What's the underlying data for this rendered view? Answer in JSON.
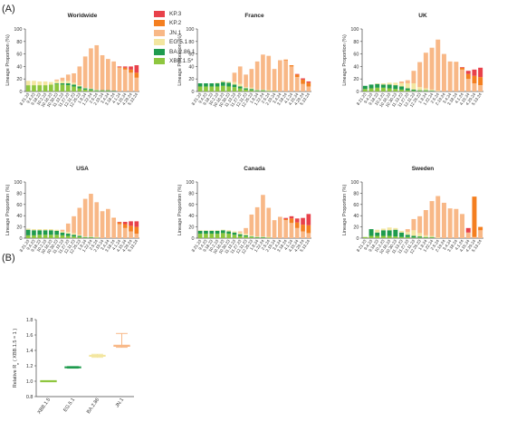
{
  "labels": {
    "panel_a": "(A)",
    "panel_b": "(B)"
  },
  "colors": {
    "KP.3": "#e8414a",
    "KP.2": "#f47f20",
    "JN.1": "#f8b887",
    "EG.5.1": "#f3e6a0",
    "BA.2.86.1": "#1f9b4e",
    "XBB.1.5*": "#8ec63f"
  },
  "legend": [
    {
      "label": "KP.3",
      "key": "KP.3"
    },
    {
      "label": "KP.2",
      "key": "KP.2"
    },
    {
      "label": "JN.1",
      "key": "JN.1"
    },
    {
      "label": "EG.5.1",
      "key": "EG.5.1"
    },
    {
      "label": "BA.2.86.1",
      "key": "BA.2.86.1"
    },
    {
      "label": "XBB.1.5*",
      "key": "XBB.1.5*"
    }
  ],
  "chart_data": [
    {
      "type": "bar",
      "stacked": true,
      "title": "Worldwide",
      "ylabel": "Lineage Proportion (%)",
      "ylim": [
        0,
        100
      ],
      "yticks": [
        0,
        20,
        40,
        60,
        80,
        100
      ],
      "categories": [
        "8.21.23",
        "9.4.23",
        "9.18.23",
        "10.2.23",
        "10.16.23",
        "10.30.23",
        "11.13.23",
        "11.27.23",
        "12.11.23",
        "12.25.23",
        "1.8.24",
        "1.22.24",
        "2.5.24",
        "2.19.24",
        "3.4.24",
        "3.18.24",
        "4.1.24",
        "4.15.24",
        "4.29.24",
        "5.13.24"
      ],
      "series": [
        {
          "name": "XBB.1.5*",
          "values": [
            10,
            10,
            10,
            10,
            11,
            12,
            11,
            10,
            8,
            5,
            3,
            2,
            1,
            1,
            1,
            0,
            0,
            0,
            0,
            0
          ]
        },
        {
          "name": "BA.2.86.1",
          "values": [
            0,
            0,
            0,
            0,
            0,
            1,
            2,
            3,
            3,
            3,
            2,
            2,
            1,
            1,
            1,
            1,
            0,
            0,
            0,
            0
          ]
        },
        {
          "name": "EG.5.1",
          "values": [
            7,
            7,
            6,
            6,
            4,
            4,
            4,
            4,
            3,
            2,
            1,
            1,
            1,
            0,
            0,
            0,
            0,
            0,
            0,
            0
          ]
        },
        {
          "name": "JN.1",
          "values": [
            0,
            0,
            0,
            0,
            0,
            2,
            5,
            10,
            15,
            30,
            50,
            64,
            71,
            56,
            50,
            47,
            38,
            35,
            30,
            22
          ]
        },
        {
          "name": "KP.2",
          "values": [
            0,
            0,
            0,
            0,
            0,
            0,
            0,
            0,
            0,
            0,
            0,
            0,
            0,
            0,
            0,
            0,
            1,
            3,
            5,
            8
          ]
        },
        {
          "name": "KP.3",
          "values": [
            0,
            0,
            0,
            0,
            0,
            0,
            0,
            0,
            0,
            0,
            0,
            0,
            0,
            0,
            0,
            0,
            1,
            2,
            5,
            12
          ]
        }
      ]
    },
    {
      "type": "bar",
      "stacked": true,
      "title": "France",
      "ylabel": "Lineage Proportion (%)",
      "ylim": [
        0,
        100
      ],
      "yticks": [
        0,
        20,
        40,
        60,
        80,
        100
      ],
      "categories": [
        "8.21.23",
        "9.4.23",
        "9.18.23",
        "10.2.23",
        "10.16.23",
        "10.30.23",
        "11.13.23",
        "11.27.23",
        "12.11.23",
        "12.25.23",
        "1.8.24",
        "1.22.24",
        "2.5.24",
        "2.19.24",
        "3.4.24",
        "3.18.24",
        "4.1.24",
        "4.15.24",
        "4.29.24",
        "5.13.24"
      ],
      "series": [
        {
          "name": "XBB.1.5*",
          "values": [
            8,
            8,
            8,
            8,
            9,
            8,
            7,
            5,
            3,
            2,
            1,
            1,
            1,
            1,
            0,
            0,
            0,
            0,
            0,
            0
          ]
        },
        {
          "name": "BA.2.86.1",
          "values": [
            5,
            5,
            5,
            5,
            6,
            6,
            4,
            3,
            2,
            2,
            1,
            1,
            0,
            0,
            0,
            0,
            0,
            0,
            0,
            0
          ]
        },
        {
          "name": "EG.5.1",
          "values": [
            0,
            0,
            0,
            1,
            2,
            2,
            4,
            4,
            2,
            2,
            1,
            1,
            1,
            0,
            0,
            0,
            0,
            0,
            0,
            0
          ]
        },
        {
          "name": "JN.1",
          "values": [
            0,
            0,
            0,
            0,
            0,
            0,
            15,
            28,
            20,
            30,
            45,
            56,
            55,
            35,
            50,
            50,
            40,
            23,
            12,
            8
          ]
        },
        {
          "name": "KP.2",
          "values": [
            0,
            0,
            0,
            0,
            0,
            0,
            0,
            0,
            0,
            0,
            0,
            0,
            0,
            0,
            0,
            1,
            2,
            4,
            7,
            6
          ]
        },
        {
          "name": "KP.3",
          "values": [
            0,
            0,
            0,
            0,
            0,
            0,
            0,
            0,
            0,
            0,
            0,
            0,
            0,
            0,
            0,
            0,
            0,
            1,
            2,
            2
          ]
        }
      ]
    },
    {
      "type": "bar",
      "stacked": true,
      "title": "UK",
      "ylabel": "Lineage Proportion (%)",
      "ylim": [
        0,
        100
      ],
      "yticks": [
        0,
        20,
        40,
        60,
        80,
        100
      ],
      "categories": [
        "8.21.23",
        "9.4.23",
        "9.18.23",
        "10.2.23",
        "10.16.23",
        "10.30.23",
        "11.13.23",
        "11.27.23",
        "12.11.23",
        "12.25.23",
        "1.8.24",
        "1.22.24",
        "2.5.24",
        "2.19.24",
        "3.4.24",
        "3.18.24",
        "4.1.24",
        "4.15.24",
        "4.29.24",
        "5.13.24"
      ],
      "series": [
        {
          "name": "XBB.1.5*",
          "values": [
            4,
            5,
            6,
            6,
            5,
            4,
            3,
            2,
            1,
            1,
            1,
            0,
            0,
            0,
            0,
            0,
            0,
            0,
            0,
            0
          ]
        },
        {
          "name": "BA.2.86.1",
          "values": [
            5,
            6,
            6,
            5,
            6,
            6,
            5,
            3,
            2,
            1,
            1,
            1,
            0,
            0,
            0,
            0,
            0,
            0,
            0,
            0
          ]
        },
        {
          "name": "EG.5.1",
          "values": [
            0,
            0,
            1,
            2,
            3,
            4,
            5,
            8,
            10,
            5,
            3,
            2,
            1,
            0,
            0,
            0,
            0,
            0,
            0,
            0
          ]
        },
        {
          "name": "JN.1",
          "values": [
            0,
            0,
            0,
            0,
            0,
            0,
            3,
            5,
            20,
            40,
            57,
            67,
            82,
            60,
            48,
            46,
            35,
            20,
            13,
            10
          ]
        },
        {
          "name": "KP.2",
          "values": [
            0,
            0,
            0,
            0,
            0,
            0,
            0,
            0,
            0,
            0,
            0,
            0,
            0,
            0,
            0,
            1,
            3,
            8,
            12,
            13
          ]
        },
        {
          "name": "KP.3",
          "values": [
            0,
            0,
            0,
            0,
            0,
            0,
            0,
            0,
            0,
            0,
            0,
            0,
            0,
            0,
            0,
            0,
            1,
            5,
            10,
            15
          ]
        }
      ]
    },
    {
      "type": "bar",
      "stacked": true,
      "title": "USA",
      "ylabel": "Lineage Proportion (%)",
      "ylim": [
        0,
        100
      ],
      "yticks": [
        0,
        20,
        40,
        60,
        80,
        100
      ],
      "categories": [
        "8.21.23",
        "9.4.23",
        "9.18.23",
        "10.2.23",
        "10.16.23",
        "10.30.23",
        "11.13.23",
        "11.27.23",
        "12.11.23",
        "12.25.23",
        "1.8.24",
        "1.22.24",
        "2.5.24",
        "2.19.24",
        "3.4.24",
        "3.18.24",
        "4.1.24",
        "4.15.24",
        "4.29.24",
        "5.13.24"
      ],
      "series": [
        {
          "name": "XBB.1.5*",
          "values": [
            5,
            5,
            6,
            6,
            6,
            6,
            5,
            4,
            3,
            2,
            1,
            1,
            1,
            0,
            0,
            0,
            0,
            0,
            0,
            0
          ]
        },
        {
          "name": "BA.2.86.1",
          "values": [
            10,
            9,
            8,
            8,
            8,
            7,
            5,
            4,
            3,
            2,
            1,
            1,
            0,
            0,
            0,
            0,
            0,
            0,
            0,
            0
          ]
        },
        {
          "name": "EG.5.1",
          "values": [
            2,
            2,
            2,
            2,
            2,
            2,
            2,
            3,
            3,
            2,
            1,
            1,
            1,
            0,
            0,
            0,
            0,
            0,
            0,
            0
          ]
        },
        {
          "name": "JN.1",
          "values": [
            0,
            0,
            0,
            0,
            0,
            0,
            3,
            15,
            30,
            48,
            67,
            76,
            62,
            48,
            52,
            35,
            25,
            18,
            12,
            8
          ]
        },
        {
          "name": "KP.2",
          "values": [
            0,
            0,
            0,
            0,
            0,
            0,
            0,
            0,
            0,
            0,
            0,
            0,
            0,
            0,
            0,
            1,
            3,
            7,
            10,
            12
          ]
        },
        {
          "name": "KP.3",
          "values": [
            0,
            0,
            0,
            0,
            0,
            0,
            0,
            0,
            0,
            0,
            0,
            0,
            0,
            0,
            0,
            0,
            1,
            4,
            8,
            10
          ]
        }
      ]
    },
    {
      "type": "bar",
      "stacked": true,
      "title": "Canada",
      "ylabel": "Lineage Proportion (%)",
      "ylim": [
        0,
        100
      ],
      "yticks": [
        0,
        20,
        40,
        60,
        80,
        100
      ],
      "categories": [
        "8.21.23",
        "9.4.23",
        "9.18.23",
        "10.2.23",
        "10.16.23",
        "10.30.23",
        "11.13.23",
        "11.27.23",
        "12.11.23",
        "12.25.23",
        "1.8.24",
        "1.22.24",
        "2.5.24",
        "2.19.24",
        "3.4.24",
        "3.18.24",
        "4.1.24",
        "4.15.24",
        "4.29.24",
        "5.13.24"
      ],
      "series": [
        {
          "name": "XBB.1.5*",
          "values": [
            8,
            8,
            8,
            8,
            9,
            8,
            6,
            4,
            3,
            2,
            1,
            1,
            1,
            0,
            0,
            0,
            0,
            0,
            0,
            0
          ]
        },
        {
          "name": "BA.2.86.1",
          "values": [
            5,
            5,
            5,
            5,
            5,
            4,
            4,
            3,
            2,
            1,
            1,
            1,
            0,
            0,
            0,
            0,
            0,
            0,
            0,
            0
          ]
        },
        {
          "name": "EG.5.1",
          "values": [
            1,
            1,
            1,
            1,
            1,
            2,
            2,
            3,
            3,
            2,
            1,
            1,
            1,
            0,
            0,
            0,
            0,
            0,
            0,
            0
          ]
        },
        {
          "name": "JN.1",
          "values": [
            0,
            0,
            0,
            0,
            0,
            0,
            0,
            2,
            10,
            37,
            52,
            74,
            52,
            32,
            38,
            32,
            27,
            18,
            12,
            9
          ]
        },
        {
          "name": "KP.2",
          "values": [
            0,
            0,
            0,
            0,
            0,
            0,
            0,
            0,
            0,
            0,
            0,
            0,
            0,
            0,
            0,
            2,
            8,
            10,
            12,
            14
          ]
        },
        {
          "name": "KP.3",
          "values": [
            0,
            0,
            0,
            0,
            0,
            0,
            0,
            0,
            0,
            0,
            0,
            0,
            0,
            0,
            0,
            2,
            4,
            7,
            12,
            20
          ]
        }
      ]
    },
    {
      "type": "bar",
      "stacked": true,
      "title": "Sweden",
      "ylabel": "Lineage Proportion (%)",
      "ylim": [
        0,
        100
      ],
      "yticks": [
        0,
        20,
        40,
        60,
        80,
        100
      ],
      "categories": [
        "8.21.23",
        "9.4.23",
        "9.18.23",
        "10.2.23",
        "10.16.23",
        "10.30.23",
        "11.13.23",
        "11.27.23",
        "12.11.23",
        "12.25.23",
        "1.8.24",
        "1.22.24",
        "2.5.24",
        "2.19.24",
        "3.4.24",
        "3.18.24",
        "4.1.24",
        "4.15.24",
        "4.29.24",
        "5.13.24"
      ],
      "series": [
        {
          "name": "XBB.1.5*",
          "values": [
            2,
            4,
            4,
            4,
            4,
            3,
            2,
            2,
            1,
            1,
            1,
            1,
            0,
            0,
            0,
            0,
            0,
            0,
            0,
            0
          ]
        },
        {
          "name": "BA.2.86.1",
          "values": [
            0,
            12,
            6,
            10,
            10,
            12,
            8,
            4,
            3,
            2,
            1,
            1,
            0,
            0,
            0,
            0,
            0,
            0,
            0,
            0
          ]
        },
        {
          "name": "EG.5.1",
          "values": [
            0,
            0,
            5,
            3,
            5,
            3,
            3,
            5,
            10,
            6,
            3,
            2,
            1,
            0,
            0,
            0,
            0,
            0,
            0,
            0
          ]
        },
        {
          "name": "JN.1",
          "values": [
            0,
            0,
            0,
            0,
            0,
            0,
            0,
            5,
            20,
            30,
            45,
            62,
            74,
            63,
            53,
            52,
            43,
            10,
            2,
            14
          ]
        },
        {
          "name": "KP.2",
          "values": [
            0,
            0,
            0,
            0,
            0,
            0,
            0,
            0,
            0,
            0,
            0,
            0,
            0,
            0,
            0,
            0,
            0,
            0,
            72,
            6
          ]
        },
        {
          "name": "KP.3",
          "values": [
            0,
            0,
            0,
            0,
            0,
            0,
            0,
            0,
            0,
            0,
            0,
            0,
            0,
            0,
            0,
            0,
            0,
            8,
            0,
            0
          ]
        }
      ]
    },
    {
      "type": "scatter",
      "title": "",
      "ylabel": "Relative Re ( XBB.1.5 = 1 )",
      "ylabel_main": "Relative R",
      "ylabel_sub": "e",
      "ylabel_rest": " ( XBB.1.5 = 1 )",
      "ylim": [
        0.8,
        1.8
      ],
      "yticks": [
        "0.8",
        "1.0",
        "1.2",
        "1.4",
        "1.6",
        "1.8"
      ],
      "categories": [
        "XBB.1.5",
        "EG.5.1",
        "BA.2.86",
        "JN.1"
      ],
      "values": [
        1.0,
        1.18,
        1.33,
        1.46
      ],
      "err_low": [
        1.0,
        1.17,
        1.31,
        1.44
      ],
      "err_high": [
        1.0,
        1.19,
        1.35,
        1.62
      ],
      "color_keys": [
        "XBB.1.5*",
        "BA.2.86.1",
        "EG.5.1",
        "JN.1"
      ]
    }
  ]
}
